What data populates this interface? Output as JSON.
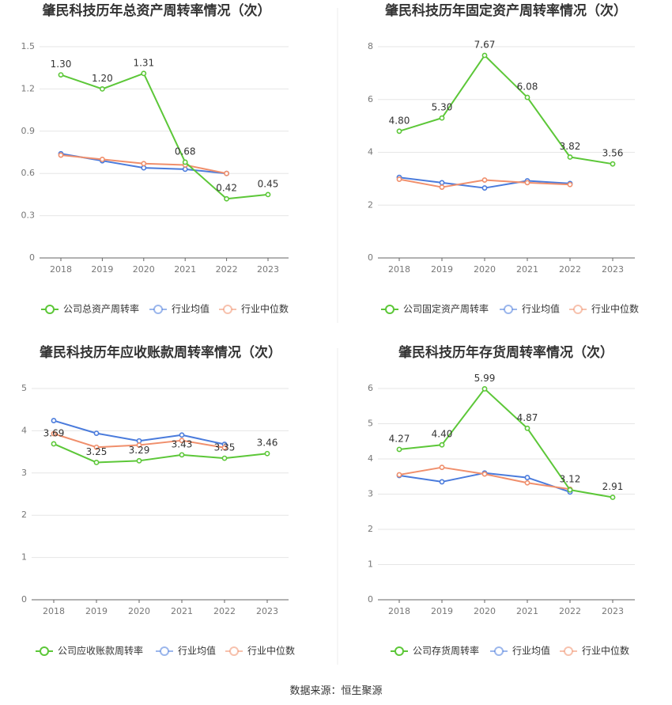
{
  "footer": {
    "source": "数据来源：恒生聚源"
  },
  "colors": {
    "company": "#5cc738",
    "average": "#4a7bdc",
    "median": "#f08f6c",
    "grid": "#e6e6e6",
    "axis": "#666666"
  },
  "chart_data": [
    {
      "type": "line",
      "title": "肇民科技历年总资产周转率情况（次）",
      "x": [
        "2018",
        "2019",
        "2020",
        "2021",
        "2022",
        "2023"
      ],
      "ylim": [
        0,
        1.5
      ],
      "yticks": [
        "0",
        "0.3",
        "0.6",
        "0.9",
        "1.2",
        "1.5"
      ],
      "series": [
        {
          "name": "公司总资产周转率",
          "key": "company",
          "values": [
            1.3,
            1.2,
            1.31,
            0.68,
            0.42,
            0.45
          ],
          "labels": [
            "1.30",
            "1.20",
            "1.31",
            "0.68",
            "0.42",
            "0.45"
          ]
        },
        {
          "name": "行业均值",
          "key": "average",
          "values": [
            0.74,
            0.69,
            0.64,
            0.63,
            0.6,
            null
          ]
        },
        {
          "name": "行业中位数",
          "key": "median",
          "values": [
            0.73,
            0.7,
            0.67,
            0.66,
            0.6,
            null
          ]
        }
      ]
    },
    {
      "type": "line",
      "title": "肇民科技历年固定资产周转率情况（次）",
      "x": [
        "2018",
        "2019",
        "2020",
        "2021",
        "2022",
        "2023"
      ],
      "ylim": [
        0,
        8
      ],
      "yticks": [
        "0",
        "2",
        "4",
        "6",
        "8"
      ],
      "series": [
        {
          "name": "公司固定资产周转率",
          "key": "company",
          "values": [
            4.8,
            5.3,
            7.67,
            6.08,
            3.82,
            3.56
          ],
          "labels": [
            "4.80",
            "5.30",
            "7.67",
            "6.08",
            "3.82",
            "3.56"
          ]
        },
        {
          "name": "行业均值",
          "key": "average",
          "values": [
            3.05,
            2.85,
            2.65,
            2.92,
            2.82,
            null
          ]
        },
        {
          "name": "行业中位数",
          "key": "median",
          "values": [
            2.98,
            2.68,
            2.95,
            2.85,
            2.78,
            null
          ]
        }
      ]
    },
    {
      "type": "line",
      "title": "肇民科技历年应收账款周转率情况（次）",
      "x": [
        "2018",
        "2019",
        "2020",
        "2021",
        "2022",
        "2023"
      ],
      "ylim": [
        0,
        5
      ],
      "yticks": [
        "0",
        "1",
        "2",
        "3",
        "4",
        "5"
      ],
      "series": [
        {
          "name": "公司应收账款周转率",
          "key": "company",
          "values": [
            3.69,
            3.25,
            3.29,
            3.43,
            3.35,
            3.46
          ],
          "labels": [
            "3.69",
            "3.25",
            "3.29",
            "3.43",
            "3.35",
            "3.46"
          ]
        },
        {
          "name": "行业均值",
          "key": "average",
          "values": [
            4.24,
            3.94,
            3.76,
            3.9,
            3.68,
            null
          ]
        },
        {
          "name": "行业中位数",
          "key": "median",
          "values": [
            3.93,
            3.61,
            3.66,
            3.77,
            3.6,
            null
          ]
        }
      ]
    },
    {
      "type": "line",
      "title": "肇民科技历年存货周转率情况（次）",
      "x": [
        "2018",
        "2019",
        "2020",
        "2021",
        "2022",
        "2023"
      ],
      "ylim": [
        0,
        6
      ],
      "yticks": [
        "0",
        "1",
        "2",
        "3",
        "4",
        "5",
        "6"
      ],
      "series": [
        {
          "name": "公司存货周转率",
          "key": "company",
          "values": [
            4.27,
            4.4,
            5.99,
            4.87,
            3.12,
            2.91
          ],
          "labels": [
            "4.27",
            "4.40",
            "5.99",
            "4.87",
            "3.12",
            "2.91"
          ]
        },
        {
          "name": "行业均值",
          "key": "average",
          "values": [
            3.53,
            3.35,
            3.6,
            3.47,
            3.06,
            null
          ]
        },
        {
          "name": "行业中位数",
          "key": "median",
          "values": [
            3.55,
            3.76,
            3.57,
            3.32,
            3.14,
            null
          ]
        }
      ]
    }
  ]
}
